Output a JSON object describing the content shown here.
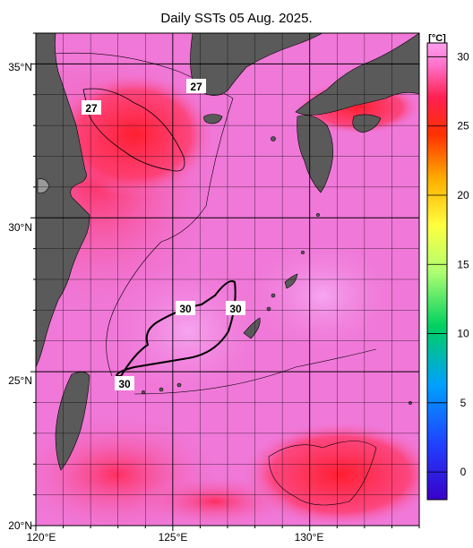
{
  "title": "Daily SSTs 05 Aug. 2025.",
  "map": {
    "lon_labels": [
      "120°E",
      "125°E",
      "130°E"
    ],
    "lat_labels": [
      "35°N",
      "30°N",
      "25°N",
      "20°N"
    ],
    "lon_range": [
      120,
      134
    ],
    "lat_range": [
      20,
      36
    ],
    "contour_labels": [
      "27",
      "27",
      "30",
      "30",
      "30"
    ],
    "colors": {
      "sea_base": "#f078d8",
      "sea_warm": "#ff2a4a",
      "land": "#5a5a5a",
      "grid": "#000000"
    }
  },
  "colorbar": {
    "unit": "[°C]",
    "ticks": [
      "30",
      "25",
      "20",
      "15",
      "10",
      "5",
      "0"
    ],
    "range": [
      -2,
      31
    ]
  }
}
